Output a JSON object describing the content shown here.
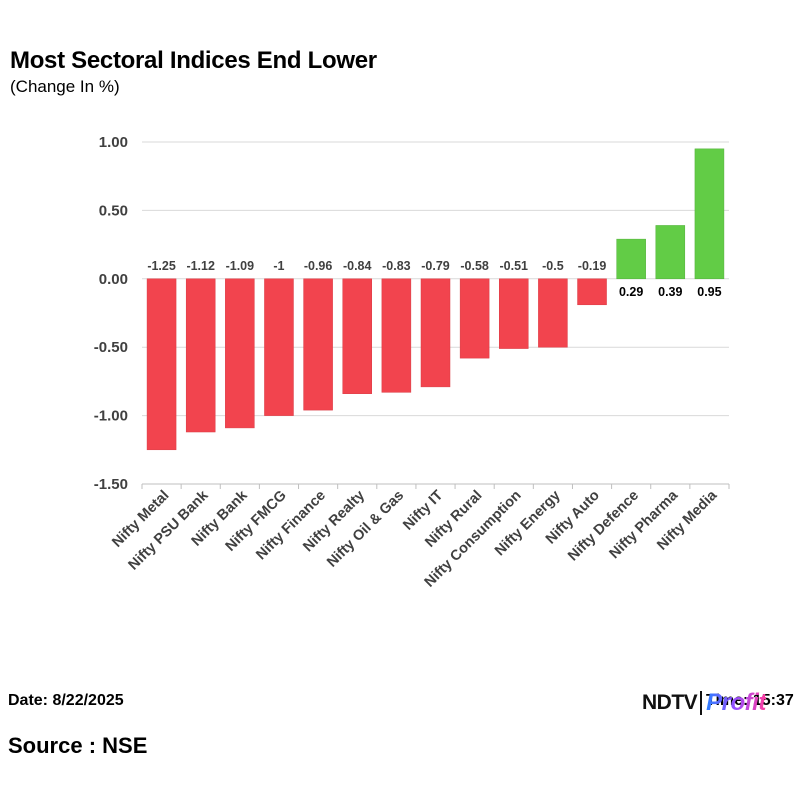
{
  "header": {
    "title": "Most Sectoral Indices End Lower",
    "subtitle": "(Change In %)"
  },
  "footer": {
    "date": "Date: 8/22/2025",
    "source": "Source : NSE",
    "time": "Time: 15:37",
    "logo_ndtv": "NDTV",
    "logo_profit": "Profit"
  },
  "colors": {
    "negative": "#f2444e",
    "positive": "#62cc46",
    "grid": "#d9d9d9",
    "axis": "#bfbfbf"
  },
  "chart_data": {
    "type": "bar",
    "title": "Most Sectoral Indices End Lower",
    "subtitle": "(Change In %)",
    "categories": [
      "Nifty Metal",
      "Nifty PSU Bank",
      "Nifty Bank",
      "Nifty FMCG",
      "Nifty Finance",
      "Nifty Realty",
      "Nifty Oil & Gas",
      "Nifty IT",
      "Nifty Rural",
      "Nifty Consumption",
      "Nifty Energy",
      "Nifty Auto",
      "Nifty Defence",
      "Nifty Pharma",
      "Nifty Media"
    ],
    "values": [
      -1.25,
      -1.12,
      -1.09,
      -1,
      -0.96,
      -0.84,
      -0.83,
      -0.79,
      -0.58,
      -0.51,
      -0.5,
      -0.19,
      0.29,
      0.39,
      0.95
    ],
    "data_labels": [
      "-1.25",
      "-1.12",
      "-1.09",
      "-1",
      "-0.96",
      "-0.84",
      "-0.83",
      "-0.79",
      "-0.58",
      "-0.51",
      "-0.5",
      "-0.19",
      "0.29",
      "0.39",
      "0.95"
    ],
    "ylim": [
      -1.5,
      1.0
    ],
    "yticks": [
      1.0,
      0.5,
      0.0,
      -0.5,
      -1.0,
      -1.5
    ],
    "ytick_labels": [
      "1.00",
      "0.50",
      "0.00",
      "-0.50",
      "-1.00",
      "-1.50"
    ],
    "grid": true,
    "legend": "none"
  }
}
